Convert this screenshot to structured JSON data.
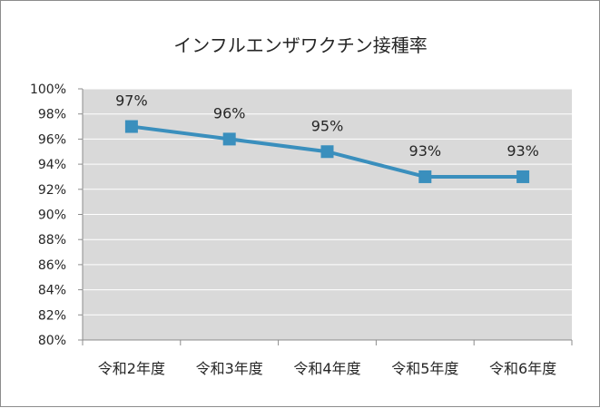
{
  "chart_data": {
    "type": "line",
    "title": "インフルエンザワクチン接種率",
    "xlabel": "",
    "ylabel": "",
    "categories": [
      "令和2年度",
      "令和3年度",
      "令和4年度",
      "令和5年度",
      "令和6年度"
    ],
    "series": [
      {
        "values": [
          97,
          96,
          95,
          93,
          93
        ]
      }
    ],
    "data_labels": [
      "97%",
      "96%",
      "95%",
      "93%",
      "93%"
    ],
    "ylim": [
      80,
      100
    ],
    "y_ticks": [
      "80%",
      "82%",
      "84%",
      "86%",
      "88%",
      "90%",
      "92%",
      "94%",
      "96%",
      "98%",
      "100%"
    ],
    "grid": true,
    "legend": "none",
    "colors": {
      "plot_background": "#d9d9d9",
      "gridline": "#ffffff",
      "series": "#3a8fbd",
      "axis": "#8c8c8c"
    }
  }
}
